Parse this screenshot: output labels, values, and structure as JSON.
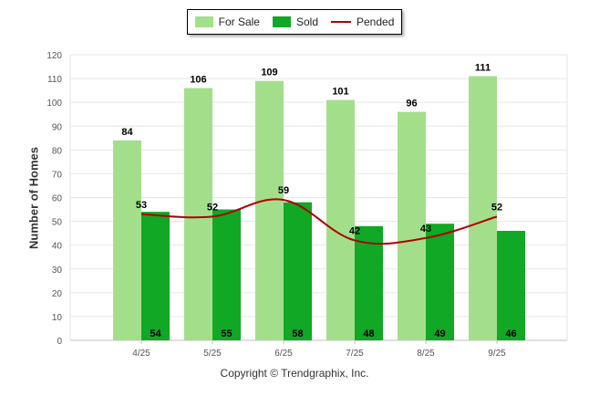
{
  "legend": {
    "for_sale": "For Sale",
    "sold": "Sold",
    "pended": "Pended"
  },
  "colors": {
    "for_sale": "#a3df8b",
    "sold": "#10a825",
    "pended": "#b00000"
  },
  "footer": "Copyright © Trendgraphix, Inc.",
  "chart_data": {
    "type": "bar",
    "categories": [
      "4/25",
      "5/25",
      "6/25",
      "7/25",
      "8/25",
      "9/25"
    ],
    "series": [
      {
        "name": "For Sale",
        "type": "bar",
        "values": [
          84,
          106,
          109,
          101,
          96,
          111
        ]
      },
      {
        "name": "Sold",
        "type": "bar",
        "values": [
          54,
          55,
          58,
          48,
          49,
          46
        ]
      },
      {
        "name": "Pended",
        "type": "line",
        "values": [
          53,
          52,
          59,
          42,
          43,
          52
        ]
      }
    ],
    "ylabel": "Number of Homes",
    "xlabel": "",
    "ylim": [
      0,
      120
    ],
    "yticks": [
      0,
      10,
      20,
      30,
      40,
      50,
      60,
      70,
      80,
      90,
      100,
      110,
      120
    ],
    "grid": true,
    "legend_position": "top-center"
  }
}
